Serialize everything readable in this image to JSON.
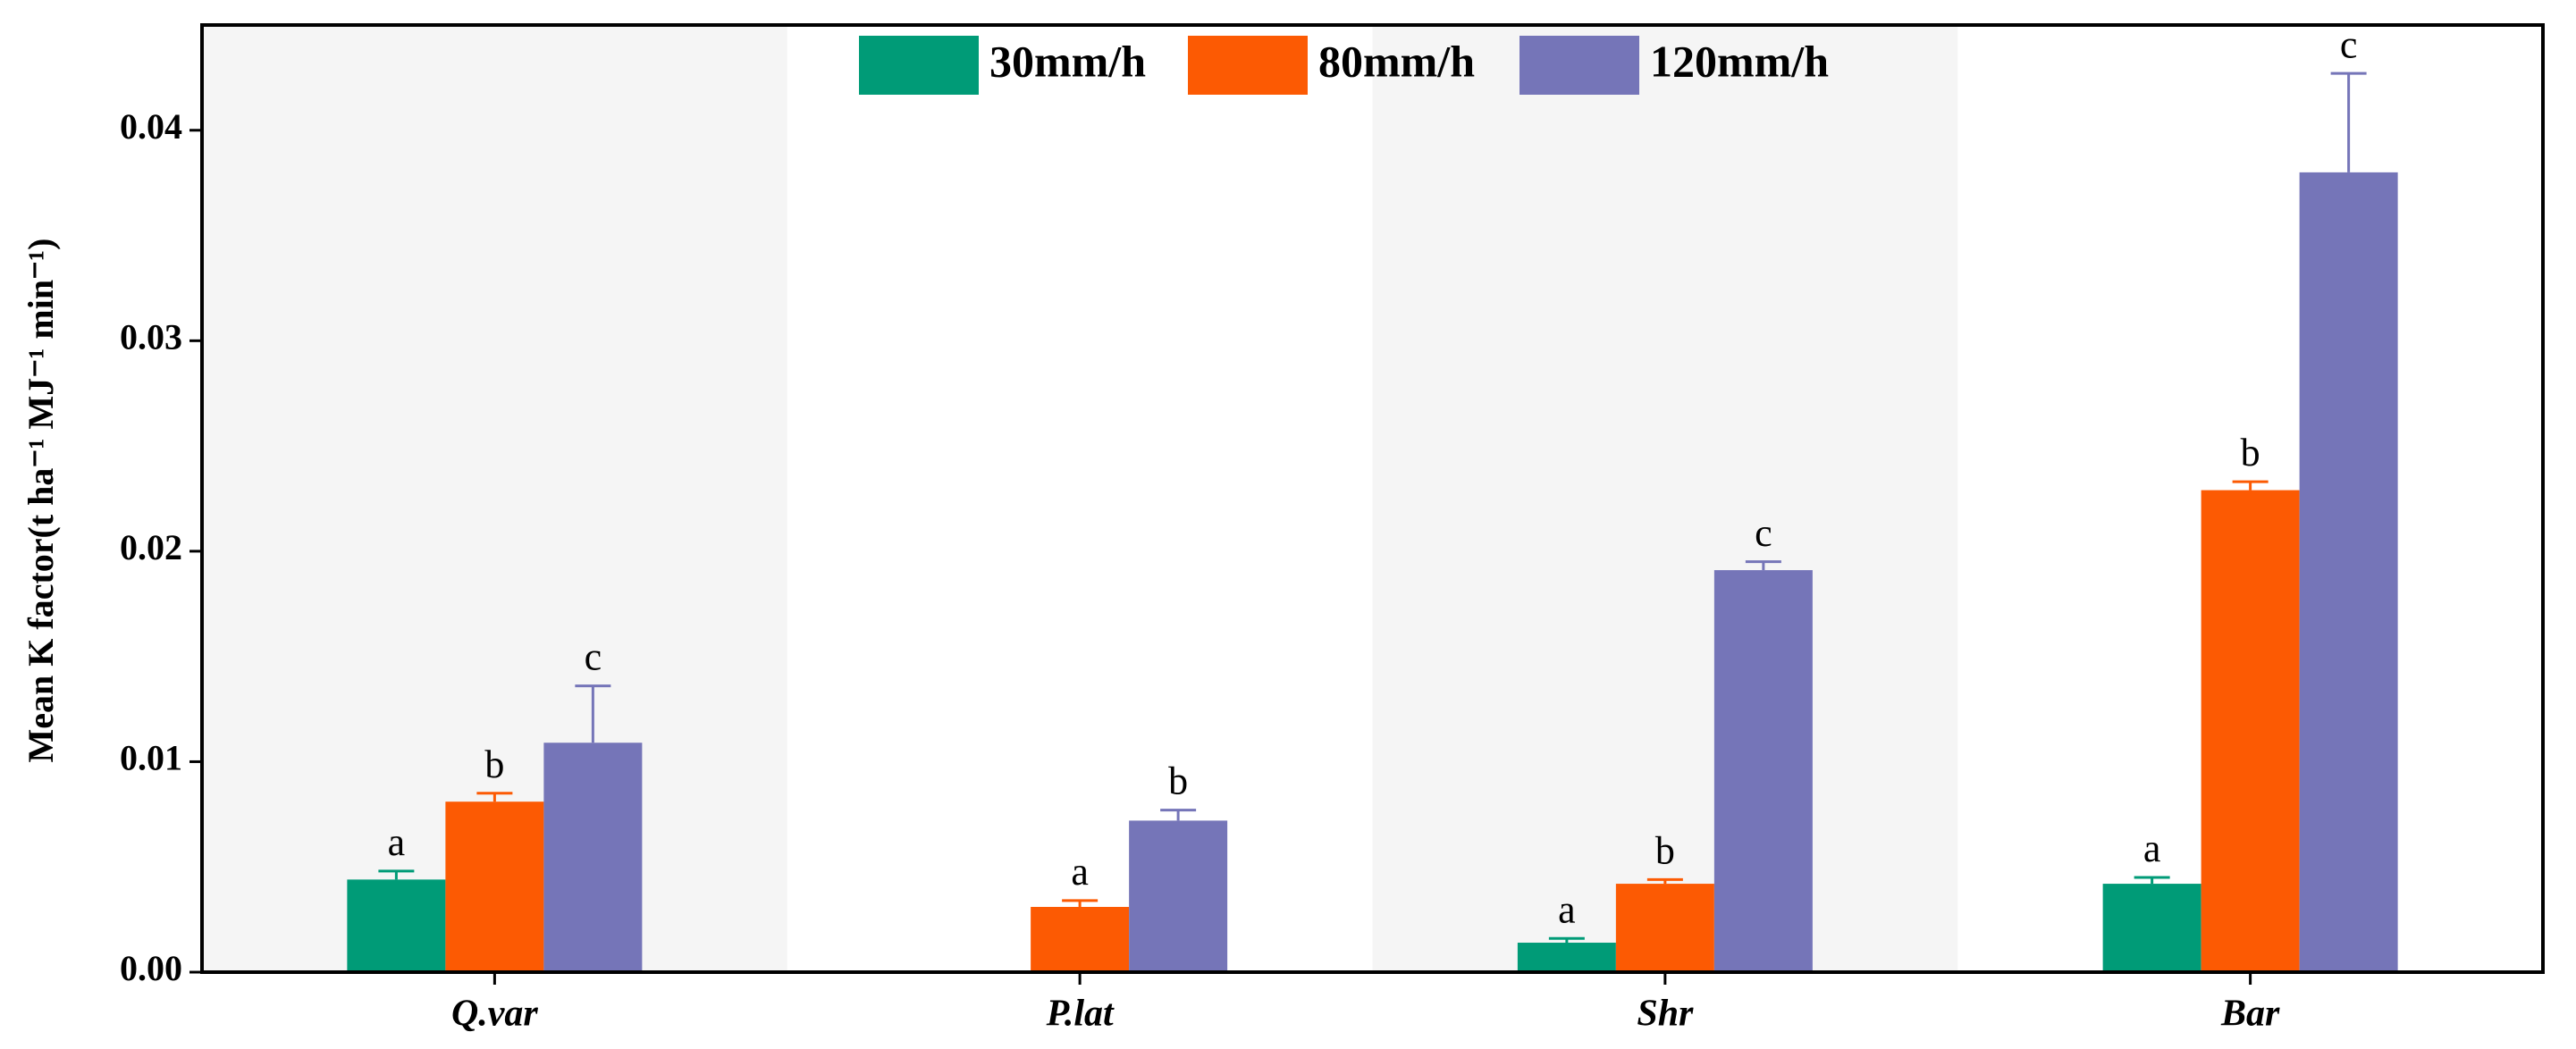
{
  "chart_data": {
    "type": "bar",
    "y_label": "Mean K factor(t ha⁻¹ MJ⁻¹ min⁻¹)",
    "categories": [
      "Q.var",
      "P.lat",
      "Shr",
      "Bar"
    ],
    "series": [
      {
        "name": "30mm/h",
        "color": "#009b77",
        "values": [
          0.0044,
          null,
          0.0014,
          0.0042
        ],
        "errors": [
          0.0004,
          null,
          0.0002,
          0.0003
        ],
        "letters": [
          "a",
          null,
          "a",
          "a"
        ]
      },
      {
        "name": "80mm/h",
        "color": "#fc5a03",
        "values": [
          0.0081,
          0.0031,
          0.0042,
          0.0229
        ],
        "errors": [
          0.0004,
          0.0003,
          0.0002,
          0.0004
        ],
        "letters": [
          "b",
          "a",
          "b",
          "b"
        ]
      },
      {
        "name": "120mm/h",
        "color": "#7575b8",
        "values": [
          0.0109,
          0.0072,
          0.0191,
          0.038
        ],
        "errors": [
          0.0027,
          0.0005,
          0.0004,
          0.0047
        ],
        "letters": [
          "c",
          "b",
          "c",
          "c"
        ]
      }
    ],
    "ylim": [
      0,
      0.045
    ],
    "yticks": [
      {
        "value": 0,
        "label": "0.00"
      },
      0.01,
      0.02,
      0.03,
      0.04
    ]
  }
}
